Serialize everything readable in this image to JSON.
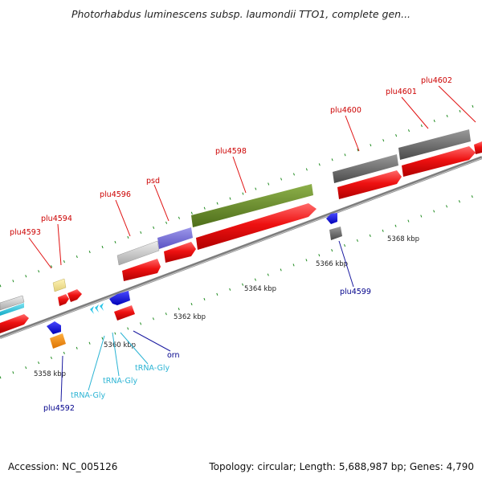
{
  "header": {
    "title": "Photorhabdus luminescens subsp. laumondii TTO1, complete gen..."
  },
  "footer": {
    "accession": "Accession: NC_005126",
    "stats": "Topology: circular; Length: 5,688,987 bp; Genes: 4,790"
  },
  "colors": {
    "backbone": "#8a8a8a",
    "cds": "#ee1111",
    "gene_label_upper": "#cc0000",
    "gene_label_lower": "#00008b",
    "trna_label": "#2cb4d4",
    "tick": "#1d8a1d"
  },
  "scale": [
    {
      "label": "5358 kbp"
    },
    {
      "label": "5360 kbp"
    },
    {
      "label": "5362 kbp"
    },
    {
      "label": "5364 kbp"
    },
    {
      "label": "5366 kbp"
    },
    {
      "label": "5368 kbp"
    }
  ],
  "features": {
    "upper": [
      {
        "name": "plu4593"
      },
      {
        "name": "plu4594"
      },
      {
        "name": "plu4596"
      },
      {
        "name": "psd"
      },
      {
        "name": "plu4598"
      },
      {
        "name": "plu4600"
      },
      {
        "name": "plu4601"
      },
      {
        "name": "plu4602"
      }
    ],
    "lower": [
      {
        "name": "plu4592"
      },
      {
        "name": "tRNA-Gly"
      },
      {
        "name": "tRNA-Gly"
      },
      {
        "name": "tRNA-Gly"
      },
      {
        "name": "orn"
      },
      {
        "name": "plu4599"
      }
    ]
  }
}
